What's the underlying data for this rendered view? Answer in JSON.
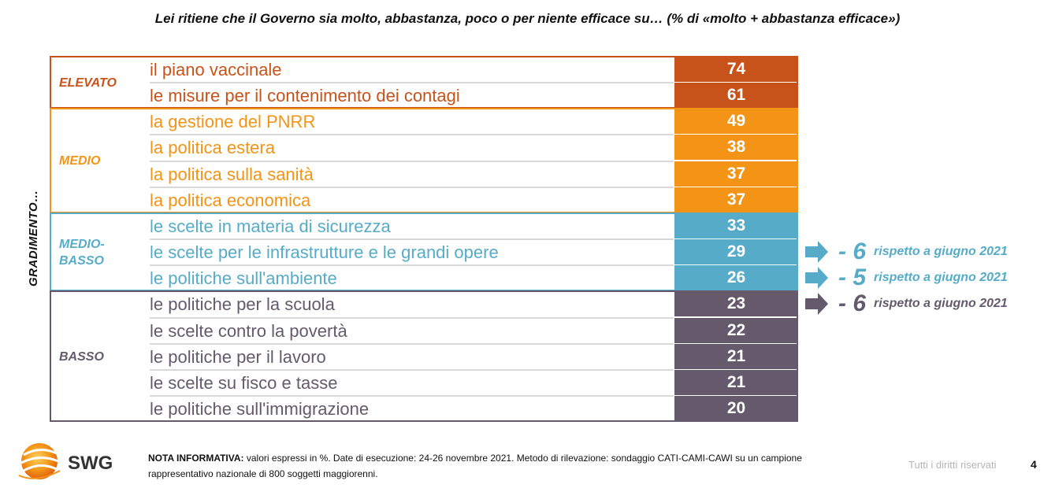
{
  "title": "Lei ritiene che il Governo sia molto, abbastanza, poco o per niente efficace su… (% di «molto + abbastanza efficace»)",
  "axis_label": "GRADIMENTO…",
  "colors": {
    "elevato": "#c8531a",
    "medio": "#f39416",
    "medio_basso": "#56acc8",
    "basso": "#645a6c"
  },
  "chart_data": {
    "type": "table",
    "title": "Lei ritiene che il Governo sia molto, abbastanza, poco o per niente efficace su… (% di «molto + abbastanza efficace»)",
    "ylabel": "GRADIMENTO…",
    "groups": [
      {
        "name": "ELEVATO",
        "color": "#c8531a",
        "items": [
          {
            "label": "il piano vaccinale",
            "value": 74
          },
          {
            "label": "le misure per il contenimento dei contagi",
            "value": 61
          }
        ]
      },
      {
        "name": "MEDIO",
        "color": "#f39416",
        "items": [
          {
            "label": "la gestione del PNRR",
            "value": 49
          },
          {
            "label": "la politica estera",
            "value": 38
          },
          {
            "label": "la politica sulla sanità",
            "value": 37
          },
          {
            "label": "la politica economica",
            "value": 37
          }
        ]
      },
      {
        "name": "MEDIO-\nBASSO",
        "color": "#56acc8",
        "items": [
          {
            "label": "le scelte in materia di sicurezza",
            "value": 33
          },
          {
            "label": "le scelte per le infrastrutture e le grandi opere",
            "value": 29,
            "delta": "- 6",
            "delta_text": "rispetto a giugno 2021"
          },
          {
            "label": "le politiche sull'ambiente",
            "value": 26,
            "delta": "- 5",
            "delta_text": "rispetto a giugno 2021"
          }
        ]
      },
      {
        "name": "BASSO",
        "color": "#645a6c",
        "items": [
          {
            "label": "le politiche per la scuola",
            "value": 23,
            "delta": "- 6",
            "delta_text": "rispetto a giugno 2021"
          },
          {
            "label": "le scelte contro la povertà",
            "value": 22
          },
          {
            "label": "le politiche per il lavoro",
            "value": 21
          },
          {
            "label": "le scelte su fisco e tasse",
            "value": 21
          },
          {
            "label": "le politiche sull'immigrazione",
            "value": 20
          }
        ]
      }
    ]
  },
  "footer": {
    "note_label": "NOTA INFORMATIVA:",
    "note_text": " valori espressi in %. Date di esecuzione: 24-26 novembre 2021. Metodo di rilevazione: sondaggio CATI-CAMI-CAWI su un campione rappresentativo nazionale di 800 soggetti maggiorenni.",
    "rights": "Tutti i diritti riservati",
    "page": "4",
    "logo_text": "SWG"
  }
}
